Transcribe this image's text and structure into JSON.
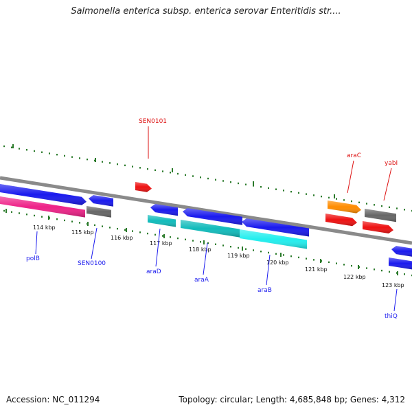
{
  "title": "Salmonella enterica subsp. enterica serovar Enteritidis str....",
  "footer": {
    "accession": "Accession: NC_011294",
    "topology": "Topology: circular; Length: 4,685,848 bp; Genes: 4,312"
  },
  "ticks": [
    "114 kbp",
    "115 kbp",
    "116 kbp",
    "117 kbp",
    "118 kbp",
    "119 kbp",
    "120 kbp",
    "121 kbp",
    "122 kbp",
    "123 kbp"
  ],
  "genes": [
    {
      "label": "polB",
      "color": "#1a1aee"
    },
    {
      "label": "SEN0100",
      "color": "#1a1aee"
    },
    {
      "label": "SEN0101",
      "color": "#dd1111"
    },
    {
      "label": "araD",
      "color": "#1a1aee"
    },
    {
      "label": "araA",
      "color": "#1a1aee"
    },
    {
      "label": "araB",
      "color": "#1a1aee"
    },
    {
      "label": "araC",
      "color": "#dd1111"
    },
    {
      "label": "yabI",
      "color": "#dd1111"
    },
    {
      "label": "thiQ",
      "color": "#1a1aee"
    }
  ],
  "colors": {
    "blue": "#1a1aee",
    "magenta": "#ee2288",
    "gray": "#666666",
    "red": "#ee1111",
    "cyan": "#11bbbb",
    "light_cyan": "#22eeee",
    "orange": "#ff8c00",
    "backbone": "#8a8a8a",
    "tick_green": "#2a7a2a"
  }
}
